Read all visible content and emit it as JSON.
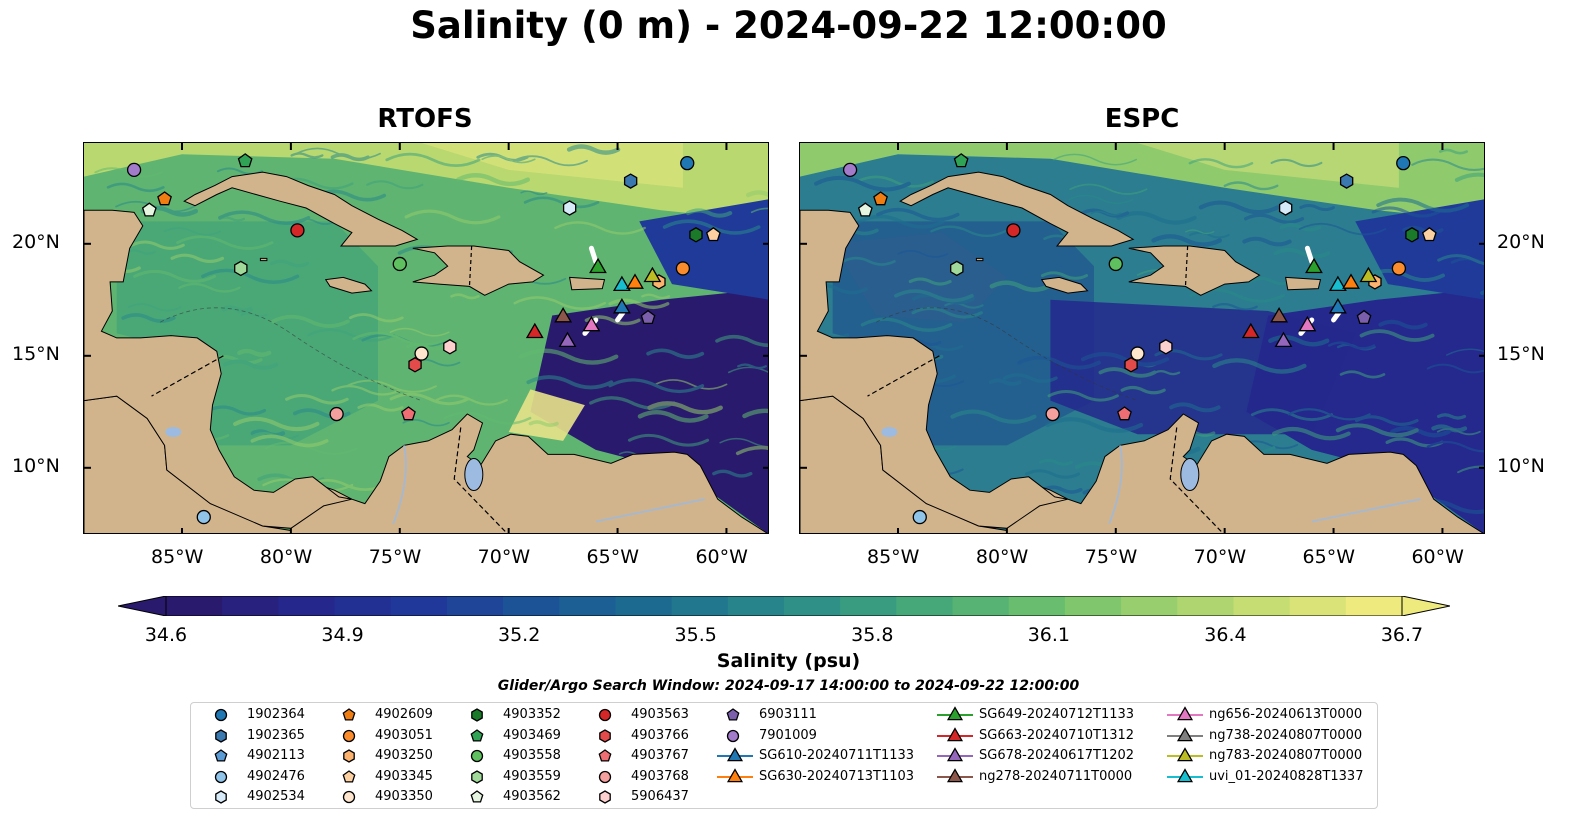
{
  "title": "Salinity (0 m) - 2024-09-22 12:00:00",
  "panels": [
    {
      "name": "RTOFS",
      "flavor": "rtofs"
    },
    {
      "name": "ESPC",
      "flavor": "espc"
    }
  ],
  "map_extent": {
    "lon": [
      -89.5,
      -58.0
    ],
    "lat": [
      7.0,
      24.5
    ]
  },
  "lon_ticks": [
    {
      "value": -85,
      "label": "85°W"
    },
    {
      "value": -80,
      "label": "80°W"
    },
    {
      "value": -75,
      "label": "75°W"
    },
    {
      "value": -70,
      "label": "70°W"
    },
    {
      "value": -65,
      "label": "65°W"
    },
    {
      "value": -60,
      "label": "60°W"
    }
  ],
  "lat_ticks": [
    {
      "value": 20,
      "label": "20°N"
    },
    {
      "value": 15,
      "label": "15°N"
    },
    {
      "value": 10,
      "label": "10°N"
    }
  ],
  "colorbar": {
    "label": "Salinity (psu)",
    "min": 34.6,
    "max": 36.7,
    "ticks": [
      "34.6",
      "34.9",
      "35.2",
      "35.5",
      "35.8",
      "36.1",
      "36.4",
      "36.7"
    ],
    "colormap": [
      "#2a1a6e",
      "#25288d",
      "#203a9a",
      "#1b5796",
      "#1e6f90",
      "#2a8a8a",
      "#3fa37c",
      "#62bb6e",
      "#93cc6c",
      "#c3dc72",
      "#eeea7d"
    ],
    "extend": "both"
  },
  "colors": {
    "land": "#d2b48c",
    "lakes": "#9dbbe0",
    "rivers": "#a8b8cc"
  },
  "search_window": "Glider/Argo Search Window: 2024-09-17 14:00:00 to 2024-09-22 12:00:00",
  "legend": [
    {
      "label": "1902364",
      "marker": "circle",
      "color": "#1f77b4"
    },
    {
      "label": "1902365",
      "marker": "hexagon",
      "color": "#3a78b0"
    },
    {
      "label": "4902113",
      "marker": "pentagon",
      "color": "#5a9bd5"
    },
    {
      "label": "4902476",
      "marker": "circle",
      "color": "#90c4e8"
    },
    {
      "label": "4902534",
      "marker": "hexagon",
      "color": "#d6eaf8"
    },
    {
      "label": "4902609",
      "marker": "pentagon",
      "color": "#f07d12"
    },
    {
      "label": "4903051",
      "marker": "circle",
      "color": "#fb8c2e"
    },
    {
      "label": "4903250",
      "marker": "hexagon",
      "color": "#fcb370"
    },
    {
      "label": "4903345",
      "marker": "pentagon",
      "color": "#fdd0a2"
    },
    {
      "label": "4903350",
      "marker": "circle",
      "color": "#fee6ce"
    },
    {
      "label": "4903352",
      "marker": "hexagon",
      "color": "#1b7a2a"
    },
    {
      "label": "4903469",
      "marker": "pentagon",
      "color": "#31a354"
    },
    {
      "label": "4903558",
      "marker": "circle",
      "color": "#5fc060"
    },
    {
      "label": "4903559",
      "marker": "hexagon",
      "color": "#a1d99b"
    },
    {
      "label": "4903562",
      "marker": "pentagon",
      "color": "#e5f5e0"
    },
    {
      "label": "4903563",
      "marker": "circle",
      "color": "#d62728"
    },
    {
      "label": "4903766",
      "marker": "hexagon",
      "color": "#e34a4a"
    },
    {
      "label": "4903767",
      "marker": "pentagon",
      "color": "#ee6e73"
    },
    {
      "label": "4903768",
      "marker": "circle",
      "color": "#f4a09e"
    },
    {
      "label": "5906437",
      "marker": "hexagon",
      "color": "#fbd0cf"
    },
    {
      "label": "6903111",
      "marker": "pentagon",
      "color": "#7b5fad"
    },
    {
      "label": "7901009",
      "marker": "circle",
      "color": "#a37bcb"
    },
    {
      "label": "SG610-20240711T1133",
      "marker": "triangle",
      "color": "#1f77b4"
    },
    {
      "label": "SG630-20240713T1103",
      "marker": "triangle",
      "color": "#ff7f0e"
    },
    {
      "label": "SG649-20240712T1133",
      "marker": "triangle",
      "color": "#2ca02c"
    },
    {
      "label": "SG663-20240710T1312",
      "marker": "triangle",
      "color": "#d62728"
    },
    {
      "label": "SG678-20240617T1202",
      "marker": "triangle",
      "color": "#9467bd"
    },
    {
      "label": "ng278-20240711T0000",
      "marker": "triangle",
      "color": "#8c564b"
    },
    {
      "label": "ng656-20240613T0000",
      "marker": "triangle",
      "color": "#e377c2"
    },
    {
      "label": "ng738-20240807T0000",
      "marker": "triangle",
      "color": "#7f7f7f"
    },
    {
      "label": "ng783-20240807T0000",
      "marker": "triangle",
      "color": "#bcbd22"
    },
    {
      "label": "uvi_01-20240828T1337",
      "marker": "triangle",
      "color": "#17becf"
    }
  ],
  "floats": [
    {
      "id": "1902364",
      "lon": -61.8,
      "lat": 23.6
    },
    {
      "id": "1902365",
      "lon": -64.4,
      "lat": 22.8
    },
    {
      "id": "4902476",
      "lon": -84.0,
      "lat": 7.8
    },
    {
      "id": "4902534",
      "lon": -67.2,
      "lat": 21.6
    },
    {
      "id": "4902609",
      "lon": -85.8,
      "lat": 22.0
    },
    {
      "id": "4903051",
      "lon": -62.0,
      "lat": 18.9
    },
    {
      "id": "4903250",
      "lon": -63.1,
      "lat": 18.3
    },
    {
      "id": "4903345",
      "lon": -60.6,
      "lat": 20.4
    },
    {
      "id": "4903350",
      "lon": -74.0,
      "lat": 15.1
    },
    {
      "id": "4903352",
      "lon": -61.4,
      "lat": 20.4
    },
    {
      "id": "4903469",
      "lon": -82.1,
      "lat": 23.7
    },
    {
      "id": "4903558",
      "lon": -75.0,
      "lat": 19.1
    },
    {
      "id": "4903559",
      "lon": -82.3,
      "lat": 18.9
    },
    {
      "id": "4903562",
      "lon": -86.5,
      "lat": 21.5
    },
    {
      "id": "4903563",
      "lon": -79.7,
      "lat": 20.6
    },
    {
      "id": "4903766",
      "lon": -74.3,
      "lat": 14.6
    },
    {
      "id": "4903767",
      "lon": -74.6,
      "lat": 12.4
    },
    {
      "id": "4903768",
      "lon": -77.9,
      "lat": 12.4
    },
    {
      "id": "5906437",
      "lon": -72.7,
      "lat": 15.4
    },
    {
      "id": "6903111",
      "lon": -63.6,
      "lat": 16.7
    },
    {
      "id": "7901009",
      "lon": -87.2,
      "lat": 23.3
    }
  ],
  "gliders": [
    {
      "id": "SG649-20240712T1133",
      "lon": -65.9,
      "lat": 19.0
    },
    {
      "id": "SG610-20240711T1133",
      "lon": -64.8,
      "lat": 17.2
    },
    {
      "id": "uvi_01-20240828T1337",
      "lon": -64.8,
      "lat": 18.2
    },
    {
      "id": "SG630-20240713T1103",
      "lon": -64.2,
      "lat": 18.3
    },
    {
      "id": "ng783-20240807T0000",
      "lon": -63.4,
      "lat": 18.6
    },
    {
      "id": "SG663-20240710T1312",
      "lon": -68.8,
      "lat": 16.1
    },
    {
      "id": "ng278-20240711T0000",
      "lon": -67.5,
      "lat": 16.8
    },
    {
      "id": "SG678-20240617T1202",
      "lon": -67.3,
      "lat": 15.7
    },
    {
      "id": "ng656-20240613T0000",
      "lon": -66.2,
      "lat": 16.4
    }
  ]
}
